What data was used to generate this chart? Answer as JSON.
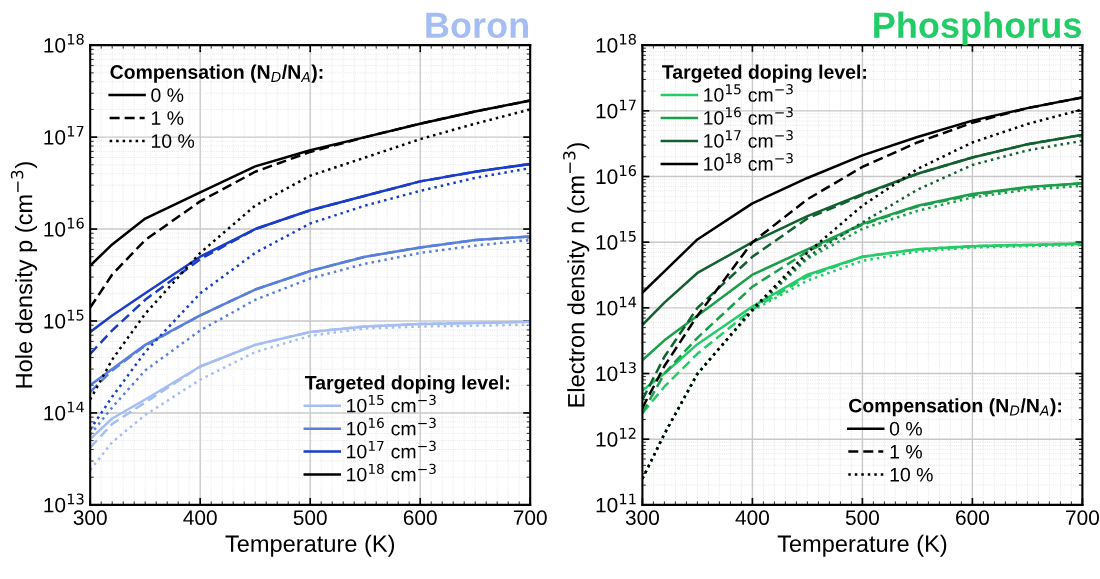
{
  "chart_data": [
    {
      "type": "line",
      "title": "Boron",
      "xlabel": "Temperature (K)",
      "ylabel": "Hole density p (cm$^{−3}$)",
      "log": "y",
      "grid": true,
      "legend": "bottom right",
      "legend_title": "Targeted doping level:",
      "annotations": [
        "Compensation (N$_{D}$/N$_{A}$):",
        "0 %",
        "1 %",
        "10 %"
      ],
      "x": [
        300,
        320,
        350,
        400,
        450,
        500,
        550,
        600,
        650,
        700
      ],
      "xlim": [
        300,
        700
      ],
      "xticks": [
        300,
        400,
        500,
        600,
        700
      ],
      "ylim": [
        10000000000000.0,
        1e+18
      ],
      "yticks": [
        {
          "value": 10000000000000.0,
          "label": "10$^{13}$"
        },
        {
          "value": 100000000000000.0,
          "label": "10$^{14}$"
        },
        {
          "value": 1000000000000000.0,
          "label": "10$^{15}$"
        },
        {
          "value": 1e+16,
          "label": "10$^{16}$"
        },
        {
          "value": 1e+17,
          "label": "10$^{17}$"
        },
        {
          "value": 1e+18,
          "label": "10$^{18}$"
        }
      ],
      "series": [
        {
          "name": "10$^{15}$ cm$^{−3}$",
          "color": "#a4bdf2",
          "line_style": "solid",
          "values": [
            52000000000000.0,
            87000000000000.0,
            140000000000000.0,
            320000000000000.0,
            550000000000000.0,
            760000000000000.0,
            870000000000000.0,
            930000000000000.0,
            950000000000000.0,
            980000000000000.0
          ]
        },
        {
          "color": "#a4bdf2",
          "line_style": "dashed",
          "values": [
            42000000000000.0,
            76000000000000.0,
            130000000000000.0,
            320000000000000.0,
            550000000000000.0,
            760000000000000.0,
            870000000000000.0,
            930000000000000.0,
            950000000000000.0,
            980000000000000.0
          ]
        },
        {
          "color": "#a4bdf2",
          "line_style": "dotted",
          "values": [
            24000000000000.0,
            48000000000000.0,
            95000000000000.0,
            230000000000000.0,
            460000000000000.0,
            690000000000000.0,
            830000000000000.0,
            870000000000000.0,
            890000000000000.0,
            910000000000000.0
          ]
        },
        {
          "name": "10$^{16}$ cm$^{−3}$",
          "color": "#5a7fdb",
          "line_style": "solid",
          "values": [
            200000000000000.0,
            300000000000000.0,
            550000000000000.0,
            1150000000000000.0,
            2200000000000000.0,
            3500000000000000.0,
            5000000000000000.0,
            6300000000000000.0,
            7600000000000000.0,
            8300000000000000.0
          ]
        },
        {
          "color": "#5a7fdb",
          "line_style": "dashed",
          "values": [
            170000000000000.0,
            290000000000000.0,
            540000000000000.0,
            1150000000000000.0,
            2200000000000000.0,
            3500000000000000.0,
            5000000000000000.0,
            6300000000000000.0,
            7600000000000000.0,
            8300000000000000.0
          ]
        },
        {
          "color": "#5a7fdb",
          "line_style": "dotted",
          "values": [
            58000000000000.0,
            115000000000000.0,
            290000000000000.0,
            790000000000000.0,
            1700000000000000.0,
            2900000000000000.0,
            4200000000000000.0,
            5500000000000000.0,
            6600000000000000.0,
            7600000000000000.0
          ]
        },
        {
          "name": "10$^{17}$ cm$^{−3}$",
          "color": "#1a3cc8",
          "line_style": "solid",
          "values": [
            760000000000000.0,
            1150000000000000.0,
            2000000000000000.0,
            5000000000000000.0,
            1e+16,
            1.6e+16,
            2.3e+16,
            3.3e+16,
            4.2e+16,
            5.1e+16
          ]
        },
        {
          "color": "#1a3cc8",
          "line_style": "dashed",
          "values": [
            440000000000000.0,
            790000000000000.0,
            1700000000000000.0,
            4700000000000000.0,
            1e+16,
            1.6e+16,
            2.3e+16,
            3.3e+16,
            4.2e+16,
            5.1e+16
          ]
        },
        {
          "color": "#1a3cc8",
          "line_style": "dotted",
          "values": [
            66000000000000.0,
            150000000000000.0,
            460000000000000.0,
            2000000000000000.0,
            5500000000000000.0,
            1.15e+16,
            1.8e+16,
            2.6e+16,
            3.6e+16,
            4.6e+16
          ]
        },
        {
          "name": "10$^{18}$ cm$^{−3}$",
          "color": "#000000",
          "line_style": "solid",
          "values": [
            4000000000000000.0,
            6800000000000000.0,
            1.3e+16,
            2.5e+16,
            4.8e+16,
            7.2e+16,
            1e+17,
            1.4e+17,
            1.9e+17,
            2.5e+17
          ]
        },
        {
          "color": "#000000",
          "line_style": "dashed",
          "values": [
            1400000000000000.0,
            3200000000000000.0,
            7600000000000000.0,
            2e+16,
            4.2e+16,
            6.9e+16,
            1e+17,
            1.4e+17,
            1.9e+17,
            2.5e+17
          ]
        },
        {
          "color": "#000000",
          "line_style": "dotted",
          "values": [
            140000000000000.0,
            380000000000000.0,
            1200000000000000.0,
            5500000000000000.0,
            1.8e+16,
            3.8e+16,
            6e+16,
            9.5e+16,
            1.4e+17,
            2e+17
          ]
        }
      ]
    },
    {
      "type": "line",
      "title": "Phosphorus",
      "xlabel": "Temperature (K)",
      "ylabel": "Electron density n (cm$^{−3}$)",
      "log": "y",
      "grid": true,
      "legend": "top left",
      "legend_title": "Targeted doping level:",
      "annotations": [
        "Compensation (N$_{D}$/N$_{A}$):",
        "0 %",
        "1 %",
        "10 %"
      ],
      "x": [
        300,
        320,
        350,
        400,
        450,
        500,
        550,
        600,
        650,
        700
      ],
      "xlim": [
        300,
        700
      ],
      "xticks": [
        300,
        400,
        500,
        600,
        700
      ],
      "ylim": [
        100000000000.0,
        1e+18
      ],
      "yticks": [
        {
          "value": 100000000000.0,
          "label": "10$^{11}$"
        },
        {
          "value": 1000000000000.0,
          "label": "10$^{12}$"
        },
        {
          "value": 10000000000000.0,
          "label": "10$^{13}$"
        },
        {
          "value": 100000000000000.0,
          "label": "10$^{14}$"
        },
        {
          "value": 1000000000000000.0,
          "label": "10$^{15}$"
        },
        {
          "value": 1e+16,
          "label": "10$^{16}$"
        },
        {
          "value": 1e+17,
          "label": "10$^{17}$"
        },
        {
          "value": 1e+18,
          "label": "10$^{18}$"
        }
      ],
      "series": [
        {
          "name": "10$^{15}$ cm$^{−3}$",
          "color": "#22cc66",
          "line_style": "solid",
          "values": [
            5500000000000.0,
            10000000000000.0,
            28000000000000.0,
            105000000000000.0,
            320000000000000.0,
            600000000000000.0,
            780000000000000.0,
            870000000000000.0,
            910000000000000.0,
            950000000000000.0
          ]
        },
        {
          "color": "#22cc66",
          "line_style": "dashed",
          "values": [
            2500000000000.0,
            6300000000000.0,
            20000000000000.0,
            95000000000000.0,
            300000000000000.0,
            600000000000000.0,
            780000000000000.0,
            870000000000000.0,
            910000000000000.0,
            950000000000000.0
          ]
        },
        {
          "color": "#22cc66",
          "line_style": "dotted",
          "values": [
            250000000000.0,
            1200000000000.0,
            10000000000000.0,
            91000000000000.0,
            260000000000000.0,
            520000000000000.0,
            720000000000000.0,
            830000000000000.0,
            870000000000000.0,
            910000000000000.0
          ]
        },
        {
          "name": "10$^{16}$ cm$^{−3}$",
          "color": "#1a9e4a",
          "line_style": "solid",
          "values": [
            16000000000000.0,
            32000000000000.0,
            76000000000000.0,
            320000000000000.0,
            780000000000000.0,
            1900000000000000.0,
            3600000000000000.0,
            5400000000000000.0,
            6900000000000000.0,
            7900000000000000.0
          ]
        },
        {
          "color": "#1a9e4a",
          "line_style": "dashed",
          "values": [
            2500000000000.0,
            10000000000000.0,
            35000000000000.0,
            210000000000000.0,
            720000000000000.0,
            1850000000000000.0,
            3500000000000000.0,
            5200000000000000.0,
            6800000000000000.0,
            7900000000000000.0
          ]
        },
        {
          "color": "#1a9e4a",
          "line_style": "dotted",
          "values": [
            250000000000.0,
            1200000000000.0,
            10000000000000.0,
            91000000000000.0,
            560000000000000.0,
            1600000000000000.0,
            3000000000000000.0,
            4800000000000000.0,
            6300000000000000.0,
            7200000000000000.0
          ]
        },
        {
          "name": "10$^{17}$ cm$^{−3}$",
          "color": "#12602f",
          "line_style": "solid",
          "values": [
            55000000000000.0,
            120000000000000.0,
            340000000000000.0,
            1000000000000000.0,
            2500000000000000.0,
            5400000000000000.0,
            1.1e+16,
            1.95e+16,
            3.1e+16,
            4.3e+16
          ]
        },
        {
          "color": "#12602f",
          "line_style": "dashed",
          "values": [
            4000000000000.0,
            18000000000000.0,
            100000000000000.0,
            600000000000000.0,
            2300000000000000.0,
            5200000000000000.0,
            1.1e+16,
            1.95e+16,
            3.1e+16,
            4.3e+16
          ]
        },
        {
          "color": "#12602f",
          "line_style": "dotted",
          "values": [
            250000000000.0,
            1200000000000.0,
            10000000000000.0,
            91000000000000.0,
            600000000000000.0,
            2000000000000000.0,
            6300000000000000.0,
            1.5e+16,
            2.5e+16,
            3.5e+16
          ]
        },
        {
          "name": "10$^{18}$ cm$^{−3}$",
          "color": "#000000",
          "line_style": "solid",
          "values": [
            170000000000000.0,
            360000000000000.0,
            1100000000000000.0,
            3900000000000000.0,
            9500000000000000.0,
            2.1e+16,
            4e+16,
            7.1e+16,
            1.1e+17,
            1.6e+17
          ]
        },
        {
          "color": "#000000",
          "line_style": "dashed",
          "values": [
            3000000000000.0,
            13000000000000.0,
            76000000000000.0,
            1000000000000000.0,
            4500000000000000.0,
            1.4e+16,
            3.3e+16,
            6.6e+16,
            1.1e+17,
            1.6e+17
          ]
        },
        {
          "color": "#000000",
          "line_style": "dotted",
          "values": [
            250000000000.0,
            1200000000000.0,
            9800000000000.0,
            95000000000000.0,
            690000000000000.0,
            3600000000000000.0,
            1.3e+16,
            3.3e+16,
            6.3e+16,
            1.05e+17
          ]
        }
      ]
    }
  ]
}
